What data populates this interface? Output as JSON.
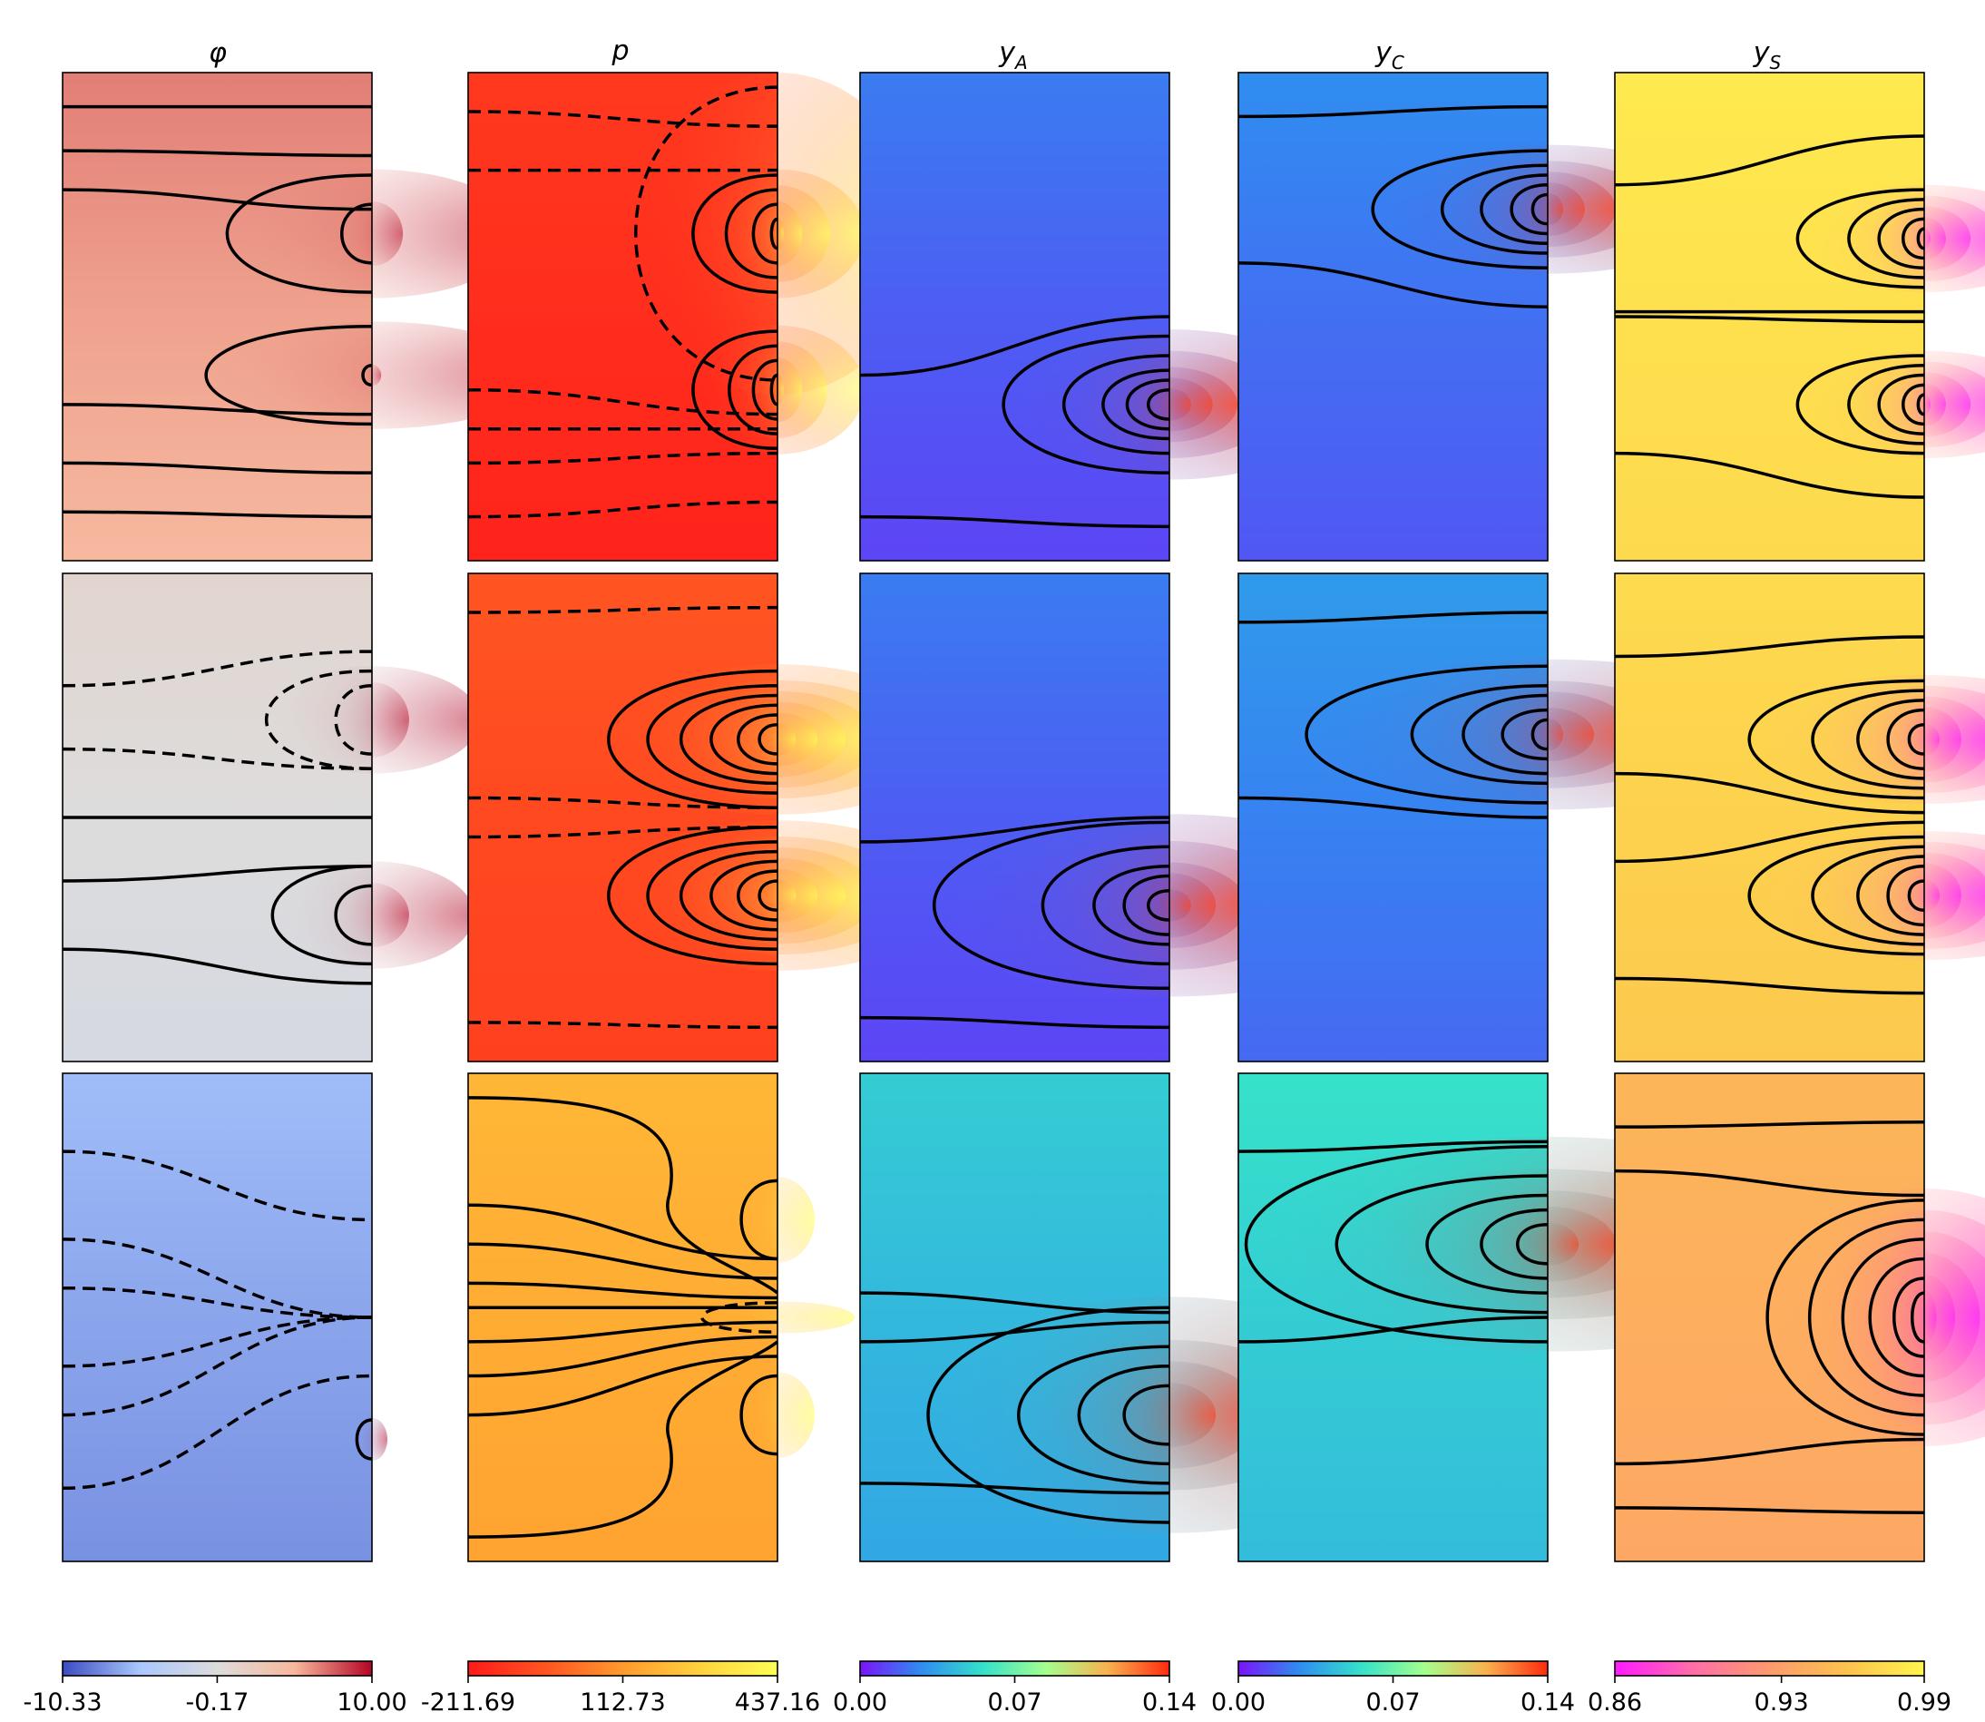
{
  "chart_data": {
    "type": "heatmap",
    "description_rows": 3,
    "columns": [
      {
        "key": "phi",
        "title": "φ",
        "colormap": [
          "#3b4cc0",
          "#aac7fd",
          "#dddcdc",
          "#f7b89c",
          "#b40426"
        ],
        "colorbar": {
          "min": -10.33,
          "mid": -0.17,
          "max": 10.0,
          "ticks": [
            "-10.33",
            "-0.17",
            "10.00"
          ]
        },
        "rows": [
          {
            "level": 0.78
          },
          {
            "level": 0.5
          },
          {
            "level": 0.18
          }
        ]
      },
      {
        "key": "p",
        "title": "p",
        "colormap": [
          "#ff1a1a",
          "#ff5522",
          "#ff9a2e",
          "#ffd23f",
          "#ffff55"
        ],
        "colorbar": {
          "min": -211.69,
          "mid": 112.73,
          "max": 437.16,
          "ticks": [
            "-211.69",
            "112.73",
            "437.16"
          ]
        },
        "rows": [
          {
            "level": 0.08
          },
          {
            "level": 0.2
          },
          {
            "level": 0.58
          }
        ]
      },
      {
        "key": "yA",
        "title": "yA",
        "colormap": [
          "#7a14f8",
          "#2f8ef0",
          "#36e2c9",
          "#a4ff8e",
          "#f8b24f",
          "#ff2a10"
        ],
        "colorbar": {
          "min": 0.0,
          "mid": 0.07,
          "max": 0.14,
          "ticks": [
            "0.00",
            "0.07",
            "0.14"
          ]
        },
        "rows": [
          {
            "level": 0.12
          },
          {
            "level": 0.12
          },
          {
            "level": 0.3
          }
        ]
      },
      {
        "key": "yC",
        "title": "yC",
        "colormap": [
          "#7a14f8",
          "#2f8ef0",
          "#36e2c9",
          "#a4ff8e",
          "#f8b24f",
          "#ff2a10"
        ],
        "colorbar": {
          "min": 0.0,
          "mid": 0.07,
          "max": 0.14,
          "ticks": [
            "0.00",
            "0.07",
            "0.14"
          ]
        },
        "rows": [
          {
            "level": 0.15
          },
          {
            "level": 0.18
          },
          {
            "level": 0.35
          }
        ]
      },
      {
        "key": "yS",
        "title": "yS",
        "colormap": [
          "#ff1aff",
          "#ff6ea8",
          "#fd9a6e",
          "#fcc34e",
          "#fff44e"
        ],
        "colorbar": {
          "min": 0.86,
          "mid": 0.93,
          "max": 0.99,
          "ticks": [
            "0.86",
            "0.93",
            "0.99"
          ]
        },
        "rows": [
          {
            "level": 0.9
          },
          {
            "level": 0.82
          },
          {
            "level": 0.62
          }
        ]
      }
    ],
    "contour_lines": "black solid for positive levels, black dashed for negative levels",
    "axes": {
      "xticks": false,
      "yticks": false
    }
  }
}
